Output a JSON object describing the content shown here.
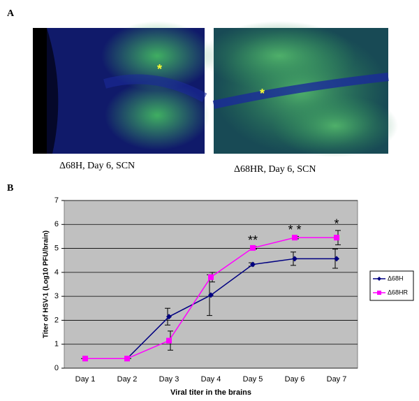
{
  "figure": {
    "panel_labels": [
      "A",
      "B"
    ],
    "captions": [
      "Δ68H, Day 6, SCN",
      "Δ68HR, Day 6, SCN"
    ],
    "image_markers": [
      "*",
      "*"
    ]
  },
  "chart_data": {
    "type": "line",
    "xlabel": "Viral titer in the brains",
    "ylabel": "Titer of HSV-1 (Log10 PFU/brain)",
    "categories": [
      "Day 1",
      "Day 2",
      "Day 3",
      "Day 4",
      "Day 5",
      "Day 6",
      "Day 7"
    ],
    "series": [
      {
        "name": "Δ68H",
        "color": "#000080",
        "marker": "diamond",
        "values": [
          0.4,
          0.4,
          2.15,
          3.05,
          4.33,
          4.57,
          4.57
        ],
        "errors": [
          0,
          0,
          0.35,
          0.85,
          0.07,
          0.28,
          0.4
        ]
      },
      {
        "name": "Δ68HR",
        "color": "#ff00ff",
        "marker": "square",
        "values": [
          0.4,
          0.4,
          1.15,
          3.8,
          5.02,
          5.45,
          5.45
        ],
        "errors": [
          0,
          0,
          0.4,
          0.2,
          0.05,
          0.05,
          0.3
        ]
      }
    ],
    "annotations": [
      "**",
      "* *",
      "*"
    ],
    "ylim": [
      0,
      7
    ],
    "yticks": [
      0,
      1,
      2,
      3,
      4,
      5,
      6,
      7
    ],
    "grid": true,
    "legend": "right"
  }
}
